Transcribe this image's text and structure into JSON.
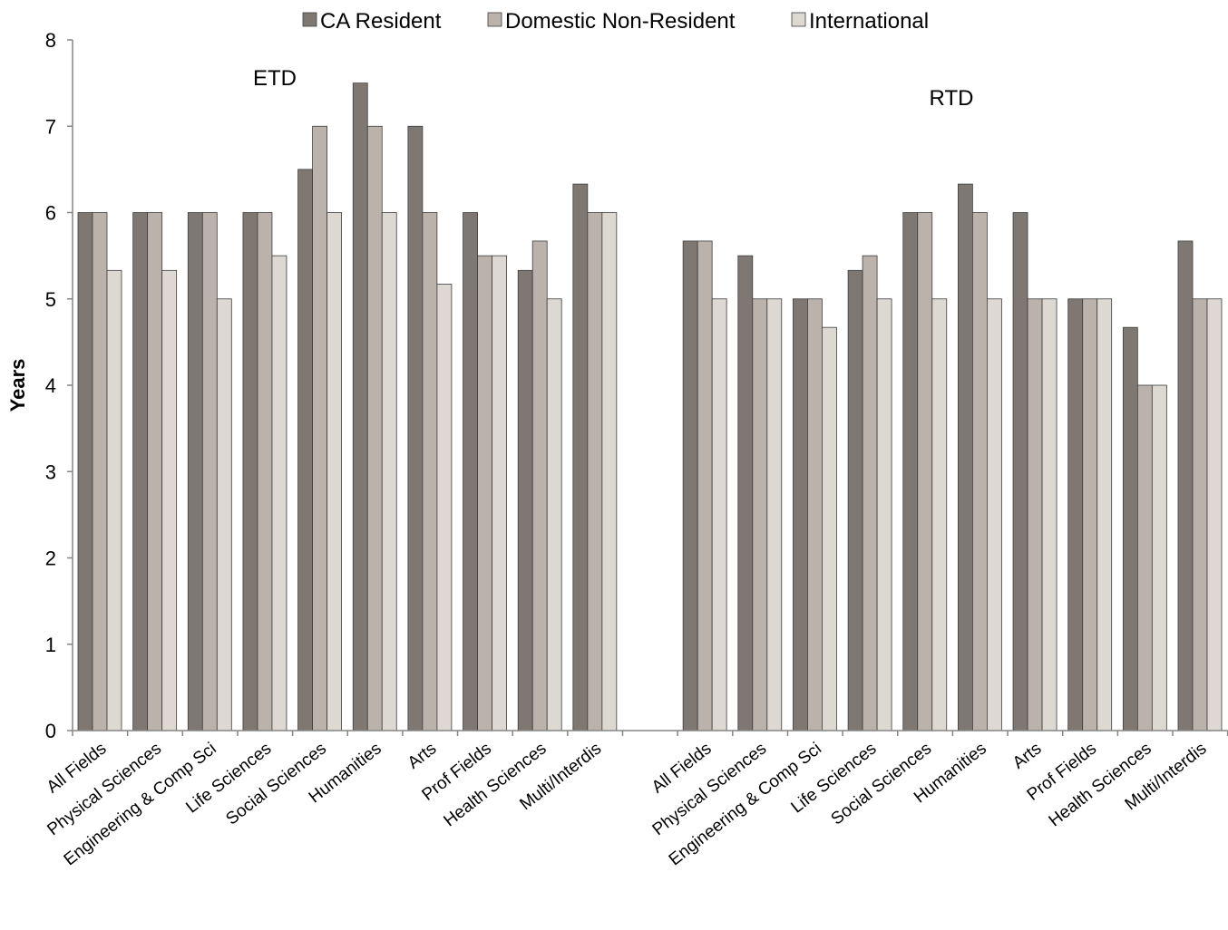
{
  "chart_data": {
    "type": "bar",
    "title": "",
    "xlabel": "",
    "ylabel": "Years",
    "ylim": [
      0,
      8
    ],
    "yticks": [
      0,
      1,
      2,
      3,
      4,
      5,
      6,
      7,
      8
    ],
    "grid": false,
    "legend_position": "top-center",
    "groups": [
      {
        "label": "ETD",
        "categories": [
          "All Fields",
          "Physical Sciences",
          "Engineering & Comp Sci",
          "Life Sciences",
          "Social Sciences",
          "Humanities",
          "Arts",
          "Prof Fields",
          "Health Sciences",
          "Multi/Interdis"
        ]
      },
      {
        "label": "RTD",
        "categories": [
          "All Fields",
          "Physical Sciences",
          "Engineering & Comp Sci",
          "Life Sciences",
          "Social Sciences",
          "Humanities",
          "Arts",
          "Prof Fields",
          "Health Sciences",
          "Multi/Interdis"
        ]
      }
    ],
    "series": [
      {
        "name": "CA Resident",
        "color": "#7f7772",
        "values": [
          6,
          6,
          6,
          6,
          6.5,
          7.5,
          7,
          6,
          5.33,
          6.33,
          5.67,
          5.5,
          5,
          5.33,
          6,
          6.33,
          6,
          5,
          4.67,
          5.67
        ]
      },
      {
        "name": "Domestic Non-Resident",
        "color": "#bbb2ac",
        "values": [
          6,
          6,
          6,
          6,
          7,
          7,
          6,
          5.5,
          5.67,
          6,
          5.67,
          5,
          5,
          5.5,
          6,
          6,
          5,
          5,
          4,
          5
        ]
      },
      {
        "name": "International",
        "color": "#ddd8d2",
        "values": [
          5.33,
          5.33,
          5,
          5.5,
          6,
          6,
          5.17,
          5.5,
          5,
          6,
          5,
          5,
          4.67,
          5,
          5,
          5,
          5,
          5,
          4,
          5
        ]
      }
    ]
  }
}
